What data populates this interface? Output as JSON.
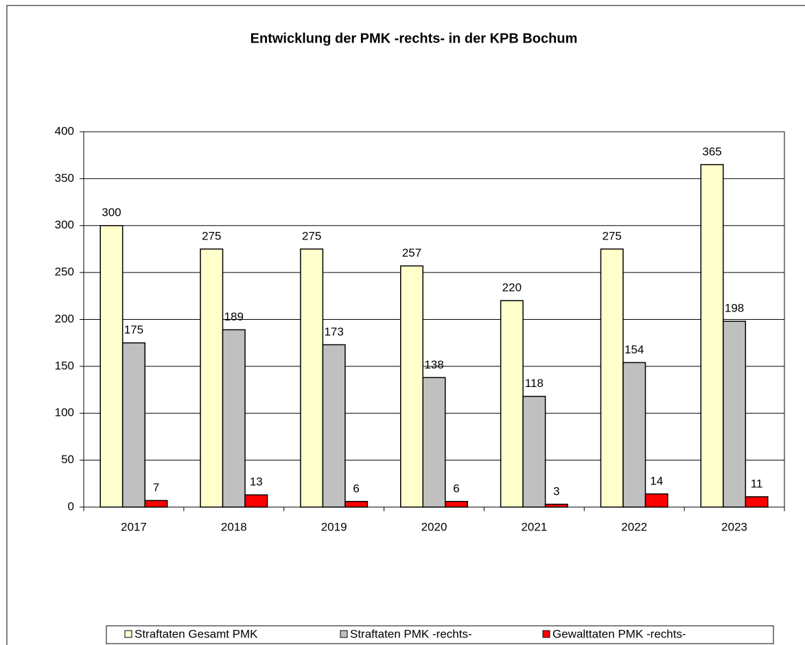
{
  "chart_data": {
    "type": "bar",
    "title": "Entwicklung der PMK -rechts- in der KPB Bochum",
    "categories": [
      "2017",
      "2018",
      "2019",
      "2020",
      "2021",
      "2022",
      "2023"
    ],
    "series": [
      {
        "name": "Straftaten Gesamt PMK",
        "color": "#ffffcc",
        "values": [
          300,
          275,
          275,
          257,
          220,
          275,
          365
        ]
      },
      {
        "name": "Straftaten PMK -rechts-",
        "color": "#c0c0c0",
        "values": [
          175,
          189,
          173,
          138,
          118,
          154,
          198
        ]
      },
      {
        "name": "Gewalttaten PMK -rechts-",
        "color": "#ff0000",
        "values": [
          7,
          13,
          6,
          6,
          3,
          14,
          11
        ]
      }
    ],
    "ylim": [
      0,
      400
    ],
    "yticks": [
      0,
      50,
      100,
      150,
      200,
      250,
      300,
      350,
      400
    ],
    "grid": true,
    "legend": "bottom"
  }
}
